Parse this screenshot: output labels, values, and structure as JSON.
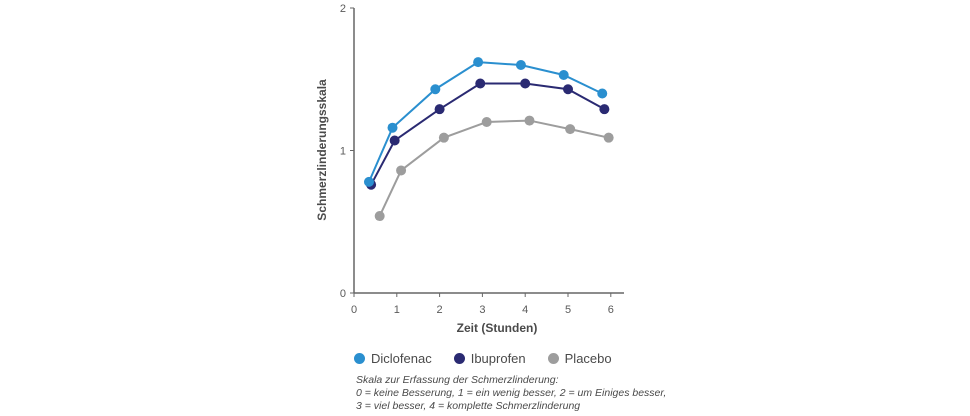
{
  "chart_data": {
    "type": "line",
    "title": "",
    "xlabel": "Zeit (Stunden)",
    "ylabel": "Schmerzlinderungsskala",
    "xlim": [
      0,
      6.3
    ],
    "ylim": [
      0,
      2
    ],
    "x_ticks": [
      "0",
      "1",
      "2",
      "3",
      "4",
      "5",
      "6"
    ],
    "y_ticks": [
      "0",
      "1",
      "2"
    ],
    "grid": false,
    "legend_position": "bottom",
    "series": [
      {
        "name": "Diclofenac",
        "color": "#2a8fcf",
        "x": [
          0.35,
          0.9,
          1.9,
          2.9,
          3.9,
          4.9,
          5.8
        ],
        "y": [
          0.78,
          1.16,
          1.43,
          1.62,
          1.6,
          1.53,
          1.4
        ]
      },
      {
        "name": "Ibuprofen",
        "color": "#2a2a72",
        "x": [
          0.4,
          0.95,
          2.0,
          2.95,
          4.0,
          5.0,
          5.85
        ],
        "y": [
          0.76,
          1.07,
          1.29,
          1.47,
          1.47,
          1.43,
          1.29
        ]
      },
      {
        "name": "Placebo",
        "color": "#9d9d9d",
        "x": [
          0.6,
          1.1,
          2.1,
          3.1,
          4.1,
          5.05,
          5.95
        ],
        "y": [
          0.54,
          0.86,
          1.09,
          1.2,
          1.21,
          1.15,
          1.09
        ]
      }
    ]
  },
  "note": {
    "line1": "Skala zur Erfassung der Schmerzlinderung:",
    "line2": "0 = keine Besserung, 1 = ein wenig besser, 2 = um Einiges besser,",
    "line3": "3 = viel besser, 4 = komplette Schmerzlinderung"
  }
}
